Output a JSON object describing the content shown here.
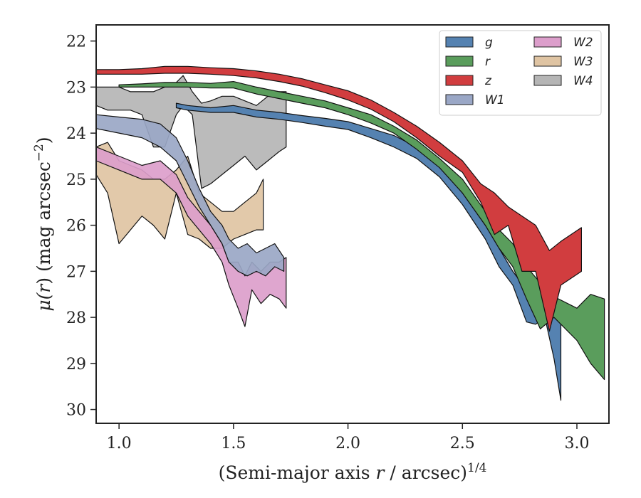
{
  "chart_data": {
    "type": "area",
    "x_axis": {
      "label_main": "(Semi-major axis ",
      "label_var": "r",
      "label_tail": " / arcsec)",
      "label_exp": "1/4",
      "range": [
        0.9,
        3.14
      ],
      "ticks": [
        1.0,
        1.5,
        2.0,
        2.5,
        3.0
      ],
      "tick_labels": [
        "1.0",
        "1.5",
        "2.0",
        "2.5",
        "3.0"
      ]
    },
    "y_axis": {
      "label_mu": "μ(",
      "label_var": "r",
      "label_mid": ") (mag arcsec",
      "label_exp": "−2",
      "label_end": ")",
      "range": [
        21.65,
        30.3
      ],
      "inverted": true,
      "ticks": [
        22,
        23,
        24,
        25,
        26,
        27,
        28,
        29,
        30
      ],
      "tick_labels": [
        "22",
        "23",
        "24",
        "25",
        "26",
        "27",
        "28",
        "29",
        "30"
      ]
    },
    "legend": {
      "location": "upper right",
      "columns": 2
    },
    "series": [
      {
        "name": "W1",
        "color": "#9aa7c6",
        "x": [
          0.9,
          1.0,
          1.1,
          1.18,
          1.25,
          1.3,
          1.35,
          1.4,
          1.45,
          1.48,
          1.52,
          1.56,
          1.6,
          1.64,
          1.68,
          1.72
        ],
        "y_upper": [
          23.6,
          23.65,
          23.7,
          23.8,
          24.1,
          24.6,
          25.2,
          25.7,
          26.0,
          26.3,
          26.5,
          26.4,
          26.6,
          26.5,
          26.4,
          26.7
        ],
        "y_lower": [
          23.9,
          24.0,
          24.1,
          24.3,
          24.6,
          25.1,
          25.6,
          26.0,
          26.4,
          26.8,
          27.0,
          27.1,
          27.0,
          27.1,
          26.9,
          27.0
        ]
      },
      {
        "name": "W2",
        "color": "#dc9ecb",
        "x": [
          0.9,
          1.0,
          1.1,
          1.18,
          1.25,
          1.3,
          1.35,
          1.4,
          1.45,
          1.48,
          1.52,
          1.55,
          1.58,
          1.62,
          1.66,
          1.7,
          1.73
        ],
        "y_upper": [
          24.3,
          24.5,
          24.7,
          24.6,
          24.9,
          25.4,
          25.7,
          26.0,
          26.4,
          26.8,
          26.8,
          27.1,
          26.8,
          27.0,
          26.8,
          26.8,
          26.7
        ],
        "y_lower": [
          24.6,
          24.8,
          25.0,
          25.0,
          25.3,
          25.8,
          26.1,
          26.4,
          26.8,
          27.3,
          27.8,
          28.2,
          27.4,
          27.7,
          27.5,
          27.6,
          27.8
        ]
      },
      {
        "name": "W3",
        "color": "#dfc4a3",
        "x": [
          0.9,
          0.95,
          1.0,
          1.05,
          1.1,
          1.15,
          1.2,
          1.25,
          1.3,
          1.35,
          1.4,
          1.45,
          1.5,
          1.55,
          1.6,
          1.63
        ],
        "y_upper": [
          24.3,
          24.2,
          24.6,
          24.7,
          24.8,
          25.0,
          25.0,
          24.8,
          24.5,
          25.3,
          25.5,
          25.7,
          25.7,
          25.5,
          25.3,
          25.0
        ],
        "y_lower": [
          24.9,
          25.3,
          26.4,
          26.1,
          25.8,
          26.0,
          26.3,
          25.3,
          26.2,
          26.3,
          26.5,
          26.5,
          26.3,
          26.2,
          26.1,
          26.1
        ]
      },
      {
        "name": "W4",
        "color": "#b5b5b5",
        "x": [
          0.9,
          0.95,
          1.0,
          1.05,
          1.1,
          1.15,
          1.2,
          1.25,
          1.28,
          1.32,
          1.36,
          1.4,
          1.45,
          1.5,
          1.55,
          1.6,
          1.65,
          1.7,
          1.73
        ],
        "y_upper": [
          23.0,
          23.0,
          23.0,
          23.1,
          23.1,
          23.1,
          23.0,
          22.9,
          22.75,
          23.1,
          23.35,
          23.3,
          23.2,
          23.2,
          23.3,
          23.4,
          23.2,
          23.1,
          23.1
        ],
        "y_lower": [
          23.4,
          23.5,
          23.5,
          23.5,
          23.6,
          24.3,
          24.3,
          23.6,
          23.4,
          23.6,
          25.2,
          25.1,
          24.9,
          24.7,
          24.5,
          24.8,
          24.6,
          24.4,
          24.3
        ]
      },
      {
        "name": "g",
        "color": "#5582b1",
        "x": [
          1.25,
          1.3,
          1.4,
          1.5,
          1.6,
          1.7,
          1.8,
          1.9,
          2.0,
          2.1,
          2.2,
          2.3,
          2.4,
          2.5,
          2.6,
          2.66,
          2.72,
          2.78,
          2.82,
          2.86,
          2.9,
          2.93
        ],
        "y_upper": [
          23.35,
          23.4,
          23.45,
          23.4,
          23.5,
          23.55,
          23.62,
          23.68,
          23.75,
          23.9,
          24.05,
          24.3,
          24.7,
          25.3,
          26.0,
          26.5,
          27.0,
          27.4,
          27.5,
          27.55,
          27.6,
          28.0
        ],
        "y_lower": [
          23.45,
          23.5,
          23.55,
          23.55,
          23.65,
          23.7,
          23.77,
          23.85,
          23.92,
          24.1,
          24.3,
          24.55,
          24.95,
          25.55,
          26.3,
          26.9,
          27.3,
          28.1,
          28.15,
          28.0,
          28.9,
          29.8
        ]
      },
      {
        "name": "r",
        "color": "#5a9d5c",
        "x": [
          1.0,
          1.1,
          1.2,
          1.3,
          1.4,
          1.5,
          1.6,
          1.7,
          1.8,
          1.9,
          2.0,
          2.1,
          2.2,
          2.3,
          2.4,
          2.5,
          2.6,
          2.66,
          2.72,
          2.78,
          2.84,
          2.9,
          3.0,
          3.06,
          3.12
        ],
        "y_upper": [
          22.95,
          22.93,
          22.9,
          22.9,
          22.92,
          22.88,
          23.0,
          23.1,
          23.2,
          23.3,
          23.45,
          23.6,
          23.85,
          24.15,
          24.55,
          25.0,
          25.7,
          26.1,
          26.4,
          26.9,
          27.25,
          27.55,
          27.8,
          27.5,
          27.6
        ],
        "y_lower": [
          23.0,
          23.0,
          23.0,
          23.0,
          23.02,
          23.02,
          23.15,
          23.25,
          23.35,
          23.45,
          23.6,
          23.78,
          24.0,
          24.35,
          24.75,
          25.3,
          26.0,
          26.5,
          26.9,
          27.6,
          28.25,
          28.0,
          28.5,
          29.0,
          29.35
        ]
      },
      {
        "name": "z",
        "color": "#d13d3f",
        "x": [
          0.9,
          1.0,
          1.1,
          1.2,
          1.3,
          1.4,
          1.5,
          1.6,
          1.7,
          1.8,
          1.9,
          2.0,
          2.1,
          2.2,
          2.3,
          2.4,
          2.5,
          2.58,
          2.64,
          2.7,
          2.76,
          2.82,
          2.88,
          2.93,
          3.02
        ],
        "y_upper": [
          22.62,
          22.62,
          22.6,
          22.55,
          22.55,
          22.58,
          22.6,
          22.65,
          22.72,
          22.82,
          22.95,
          23.08,
          23.28,
          23.55,
          23.85,
          24.2,
          24.6,
          25.1,
          25.3,
          25.6,
          25.8,
          26.0,
          26.55,
          26.35,
          26.05
        ],
        "y_lower": [
          22.72,
          22.72,
          22.72,
          22.7,
          22.7,
          22.72,
          22.75,
          22.8,
          22.88,
          22.98,
          23.12,
          23.28,
          23.48,
          23.75,
          24.1,
          24.5,
          24.85,
          25.5,
          26.2,
          26.0,
          27.0,
          27.0,
          28.3,
          27.3,
          27.0
        ]
      }
    ]
  }
}
